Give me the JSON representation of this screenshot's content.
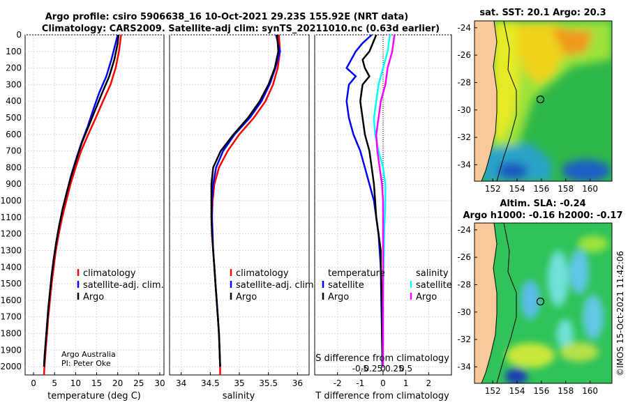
{
  "title_line1": "Argo profile: csiro 5906638_16 10-Oct-2021 29.23S 155.92E (NRT data)",
  "title_line2": "Climatology: CARS2009. Satellite-adj clim: synTS_20211010.nc (0.63d earlier)",
  "credit_line1": "Argo Australia",
  "credit_line2": "PI: Peter Oke",
  "timestamp": "©IMOS 15-Oct-2021 11:42:06",
  "colors": {
    "climatology": "#ff0000",
    "satellite": "#0000ff",
    "argo": "#000000",
    "sal_satellite": "#00ffff",
    "sal_argo": "#ff00ff"
  },
  "chart_data": [
    {
      "type": "line",
      "xlabel": "temperature (deg C)",
      "xlim": [
        -2,
        31
      ],
      "xticks": [
        0,
        5,
        10,
        15,
        20,
        25,
        30
      ],
      "xtick_labels": [
        "0",
        "5",
        "10",
        "15",
        "20",
        "25",
        "30"
      ],
      "ylim": [
        2050,
        0
      ],
      "yticks": [
        0,
        100,
        200,
        300,
        400,
        500,
        600,
        700,
        800,
        900,
        1000,
        1100,
        1200,
        1300,
        1400,
        1500,
        1600,
        1700,
        1800,
        1900,
        2000
      ],
      "ytick_labels": [
        "0",
        "100",
        "200",
        "300",
        "400",
        "500",
        "600",
        "700",
        "800",
        "900",
        "1000",
        "1100",
        "1200",
        "1300",
        "1400",
        "1500",
        "1600",
        "1700",
        "1800",
        "1900",
        "2000"
      ],
      "legend": [
        "climatology",
        "satellite-adj. clim.",
        "Argo"
      ],
      "series": [
        {
          "name": "climatology",
          "color": "#ff0000",
          "points": [
            [
              20.8,
              0
            ],
            [
              20.3,
              100
            ],
            [
              19.5,
              200
            ],
            [
              18.3,
              300
            ],
            [
              16.5,
              400
            ],
            [
              14.8,
              500
            ],
            [
              13.0,
              600
            ],
            [
              11.3,
              700
            ],
            [
              10.0,
              800
            ],
            [
              8.8,
              900
            ],
            [
              7.8,
              1000
            ],
            [
              6.8,
              1100
            ],
            [
              6.0,
              1200
            ],
            [
              5.3,
              1300
            ],
            [
              4.8,
              1400
            ],
            [
              4.3,
              1500
            ],
            [
              3.9,
              1600
            ],
            [
              3.5,
              1700
            ],
            [
              3.2,
              1800
            ],
            [
              2.9,
              1900
            ],
            [
              2.6,
              2000
            ],
            [
              2.5,
              2050
            ]
          ]
        },
        {
          "name": "satellite-adj. clim.",
          "color": "#0000ff",
          "points": [
            [
              20.0,
              0
            ],
            [
              19.5,
              50
            ],
            [
              18.5,
              150
            ],
            [
              17.3,
              250
            ],
            [
              15.6,
              350
            ],
            [
              14.2,
              450
            ],
            [
              12.9,
              550
            ],
            [
              11.4,
              650
            ],
            [
              10.1,
              750
            ],
            [
              8.9,
              850
            ],
            [
              7.9,
              950
            ],
            [
              6.9,
              1050
            ],
            [
              6.1,
              1150
            ],
            [
              5.4,
              1250
            ],
            [
              4.8,
              1350
            ],
            [
              4.3,
              1450
            ],
            [
              3.9,
              1550
            ],
            [
              3.5,
              1650
            ],
            [
              3.2,
              1750
            ],
            [
              2.9,
              1850
            ],
            [
              2.6,
              1950
            ],
            [
              2.5,
              2000
            ]
          ]
        },
        {
          "name": "Argo",
          "color": "#000000",
          "points": [
            [
              20.2,
              0
            ],
            [
              20.0,
              50
            ],
            [
              19.2,
              150
            ],
            [
              18.0,
              250
            ],
            [
              16.3,
              350
            ],
            [
              14.7,
              450
            ],
            [
              13.1,
              550
            ],
            [
              11.5,
              650
            ],
            [
              10.2,
              750
            ],
            [
              9.0,
              850
            ],
            [
              7.9,
              950
            ],
            [
              6.9,
              1050
            ],
            [
              6.1,
              1150
            ],
            [
              5.4,
              1250
            ],
            [
              4.8,
              1350
            ],
            [
              4.3,
              1450
            ],
            [
              3.9,
              1550
            ],
            [
              3.5,
              1650
            ],
            [
              3.2,
              1750
            ],
            [
              2.9,
              1850
            ],
            [
              2.6,
              1950
            ],
            [
              2.5,
              2000
            ]
          ]
        }
      ]
    },
    {
      "type": "line",
      "xlabel": "salinity",
      "xlim": [
        33.8,
        36.2
      ],
      "xticks": [
        34,
        34.5,
        35,
        35.5,
        36
      ],
      "xtick_labels": [
        "34",
        "34.5",
        "35",
        "35.5",
        "36"
      ],
      "ylim": [
        2050,
        0
      ],
      "legend": [
        "climatology",
        "satellite-adj. clim.",
        "Argo"
      ],
      "series": [
        {
          "name": "climatology",
          "color": "#ff0000",
          "points": [
            [
              35.68,
              0
            ],
            [
              35.7,
              100
            ],
            [
              35.66,
              200
            ],
            [
              35.58,
              300
            ],
            [
              35.45,
              400
            ],
            [
              35.25,
              500
            ],
            [
              35.0,
              600
            ],
            [
              34.8,
              700
            ],
            [
              34.65,
              800
            ],
            [
              34.57,
              900
            ],
            [
              34.54,
              1000
            ],
            [
              34.53,
              1100
            ],
            [
              34.53,
              1200
            ],
            [
              34.55,
              1300
            ],
            [
              34.57,
              1400
            ],
            [
              34.59,
              1500
            ],
            [
              34.61,
              1600
            ],
            [
              34.63,
              1700
            ],
            [
              34.65,
              1800
            ],
            [
              34.66,
              1900
            ],
            [
              34.67,
              2000
            ],
            [
              34.67,
              2050
            ]
          ]
        },
        {
          "name": "satellite-adj. clim.",
          "color": "#0000ff",
          "points": [
            [
              35.63,
              0
            ],
            [
              35.7,
              100
            ],
            [
              35.62,
              200
            ],
            [
              35.52,
              300
            ],
            [
              35.38,
              400
            ],
            [
              35.18,
              500
            ],
            [
              34.92,
              600
            ],
            [
              34.72,
              700
            ],
            [
              34.6,
              800
            ],
            [
              34.55,
              900
            ],
            [
              34.53,
              1000
            ],
            [
              34.53,
              1100
            ],
            [
              34.54,
              1200
            ],
            [
              34.55,
              1300
            ],
            [
              34.57,
              1400
            ],
            [
              34.59,
              1500
            ],
            [
              34.61,
              1600
            ],
            [
              34.63,
              1700
            ],
            [
              34.65,
              1800
            ],
            [
              34.66,
              1900
            ],
            [
              34.67,
              2000
            ]
          ]
        },
        {
          "name": "Argo",
          "color": "#000000",
          "points": [
            [
              35.65,
              0
            ],
            [
              35.67,
              100
            ],
            [
              35.61,
              200
            ],
            [
              35.5,
              300
            ],
            [
              35.35,
              400
            ],
            [
              35.15,
              500
            ],
            [
              34.9,
              600
            ],
            [
              34.68,
              700
            ],
            [
              34.55,
              800
            ],
            [
              34.52,
              900
            ],
            [
              34.52,
              1000
            ],
            [
              34.52,
              1100
            ],
            [
              34.53,
              1200
            ],
            [
              34.55,
              1300
            ],
            [
              34.57,
              1400
            ],
            [
              34.59,
              1500
            ],
            [
              34.61,
              1600
            ],
            [
              34.63,
              1700
            ],
            [
              34.65,
              1800
            ],
            [
              34.66,
              1900
            ],
            [
              34.67,
              2000
            ]
          ]
        }
      ]
    },
    {
      "type": "line",
      "xlabel": "T difference from climatology",
      "secondary_xlabel": "S difference from climatology",
      "xlim": [
        -3,
        3
      ],
      "xticks": [
        -2,
        -1,
        0,
        1,
        2
      ],
      "xtick_labels": [
        "-2",
        "-1",
        "0",
        "1",
        "2"
      ],
      "secondary_xticks": [
        -1,
        -0.5,
        0,
        0.5,
        1
      ],
      "secondary_xtick_labels": [
        "-0.5",
        "-0.25",
        "0",
        "0.25",
        "0.5"
      ],
      "ylim": [
        2050,
        0
      ],
      "legend_temperature_title": "temperature",
      "legend_salinity_title": "salinity",
      "legend_temperature": [
        "satellite",
        "Argo"
      ],
      "legend_salinity": [
        "satellite",
        "Argo"
      ],
      "series": [
        {
          "name": "temperature satellite",
          "color": "#0000ff",
          "points": [
            [
              -0.5,
              0
            ],
            [
              -0.9,
              50
            ],
            [
              -1.2,
              100
            ],
            [
              -1.4,
              150
            ],
            [
              -1.6,
              200
            ],
            [
              -1.2,
              250
            ],
            [
              -1.5,
              300
            ],
            [
              -1.6,
              400
            ],
            [
              -1.5,
              500
            ],
            [
              -1.3,
              600
            ],
            [
              -1.0,
              700
            ],
            [
              -0.8,
              800
            ],
            [
              -0.6,
              900
            ],
            [
              -0.4,
              1000
            ],
            [
              -0.3,
              1100
            ],
            [
              -0.2,
              1200
            ],
            [
              -0.15,
              1300
            ],
            [
              -0.1,
              1400
            ],
            [
              -0.08,
              1600
            ],
            [
              -0.05,
              1800
            ],
            [
              -0.03,
              2000
            ]
          ]
        },
        {
          "name": "temperature Argo",
          "color": "#000000",
          "points": [
            [
              -0.3,
              0
            ],
            [
              -0.6,
              100
            ],
            [
              -0.9,
              150
            ],
            [
              -0.8,
              200
            ],
            [
              -0.6,
              250
            ],
            [
              -0.9,
              300
            ],
            [
              -1.0,
              400
            ],
            [
              -0.9,
              500
            ],
            [
              -0.8,
              600
            ],
            [
              -0.6,
              700
            ],
            [
              -0.5,
              800
            ],
            [
              -0.4,
              900
            ],
            [
              -0.35,
              1000
            ],
            [
              -0.3,
              1100
            ],
            [
              -0.2,
              1200
            ],
            [
              -0.1,
              1300
            ],
            [
              -0.1,
              1400
            ],
            [
              -0.05,
              1600
            ],
            [
              -0.05,
              1800
            ],
            [
              -0.02,
              2000
            ]
          ]
        },
        {
          "name": "salinity satellite",
          "color": "#00ffff",
          "points": [
            [
              0.3,
              0
            ],
            [
              0.2,
              100
            ],
            [
              0.0,
              200
            ],
            [
              -0.2,
              300
            ],
            [
              -0.3,
              400
            ],
            [
              -0.4,
              500
            ],
            [
              -0.35,
              600
            ],
            [
              -0.2,
              700
            ],
            [
              0.0,
              800
            ],
            [
              0.1,
              900
            ],
            [
              0.1,
              1000
            ],
            [
              0.05,
              1200
            ],
            [
              0.02,
              1400
            ],
            [
              0.0,
              1600
            ],
            [
              0.0,
              2000
            ]
          ]
        },
        {
          "name": "salinity Argo",
          "color": "#ff00ff",
          "points": [
            [
              0.5,
              0
            ],
            [
              0.4,
              100
            ],
            [
              0.2,
              200
            ],
            [
              0.1,
              300
            ],
            [
              -0.1,
              400
            ],
            [
              -0.2,
              500
            ],
            [
              -0.3,
              600
            ],
            [
              -0.25,
              700
            ],
            [
              -0.15,
              800
            ],
            [
              -0.05,
              900
            ],
            [
              0.0,
              1000
            ],
            [
              0.0,
              1200
            ],
            [
              0.0,
              1400
            ],
            [
              0.0,
              1600
            ],
            [
              0.0,
              2000
            ]
          ]
        }
      ]
    },
    {
      "type": "heatmap",
      "title": "sat. SST: 20.1 Argo: 20.3",
      "xlim": [
        150.5,
        161.8
      ],
      "ylim": [
        -35.2,
        -23.5
      ],
      "xticks": [
        152,
        154,
        156,
        158,
        160
      ],
      "xtick_labels": [
        "152",
        "154",
        "156",
        "158",
        "160"
      ],
      "yticks": [
        -24,
        -26,
        -28,
        -30,
        -32,
        -34
      ],
      "ytick_labels": [
        "-24",
        "-26",
        "-28",
        "-30",
        "-32",
        "-34"
      ],
      "marker": {
        "lon": 155.92,
        "lat": -29.23
      }
    },
    {
      "type": "heatmap",
      "title_line1": "Altim. SLA: -0.24",
      "title_line2": "Argo h1000: -0.16 h2000: -0.17",
      "xlim": [
        150.5,
        161.8
      ],
      "ylim": [
        -35.2,
        -23.5
      ],
      "xticks": [
        152,
        154,
        156,
        158,
        160
      ],
      "xtick_labels": [
        "152",
        "154",
        "156",
        "158",
        "160"
      ],
      "yticks": [
        -24,
        -26,
        -28,
        -30,
        -32,
        -34
      ],
      "ytick_labels": [
        "-24",
        "-26",
        "-28",
        "-30",
        "-32",
        "-34"
      ],
      "marker": {
        "lon": 155.92,
        "lat": -29.23
      }
    }
  ]
}
